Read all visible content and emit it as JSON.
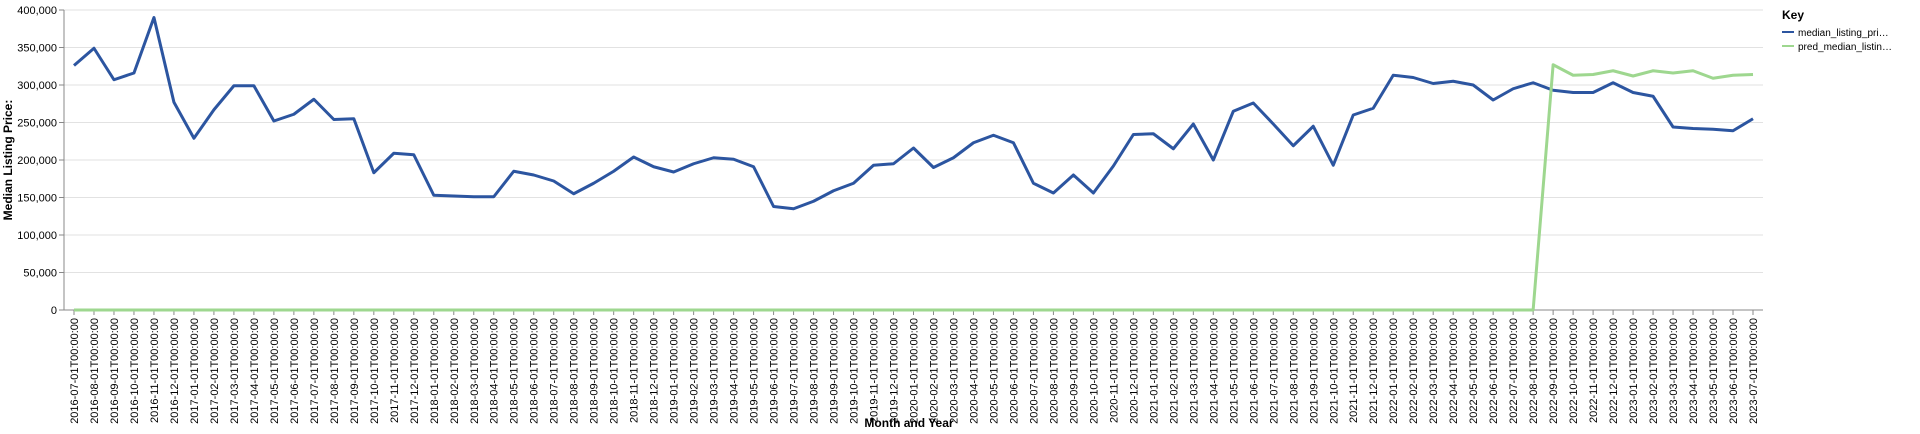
{
  "chart_data": {
    "type": "line",
    "x_label": "Month and Year",
    "y_label": "Median Listing Price:",
    "legend_title": "Key",
    "legend_position": "top-right",
    "grid": true,
    "ylim": [
      0,
      400000
    ],
    "yticks": [
      0,
      {
        "value": 50000,
        "label": "50,000"
      },
      {
        "value": 100000,
        "label": "100,000"
      },
      {
        "value": 150000,
        "label": "150,000"
      },
      {
        "value": 200000,
        "label": "200,000"
      },
      {
        "value": 250000,
        "label": "250,000"
      },
      {
        "value": 300000,
        "label": "300,000"
      },
      {
        "value": 350000,
        "label": "350,000"
      },
      {
        "value": 400000,
        "label": "400,000"
      }
    ],
    "categories": [
      "2016-07-01T00:00:00",
      "2016-08-01T00:00:00",
      "2016-09-01T00:00:00",
      "2016-10-01T00:00:00",
      "2016-11-01T00:00:00",
      "2016-12-01T00:00:00",
      "2017-01-01T00:00:00",
      "2017-02-01T00:00:00",
      "2017-03-01T00:00:00",
      "2017-04-01T00:00:00",
      "2017-05-01T00:00:00",
      "2017-06-01T00:00:00",
      "2017-07-01T00:00:00",
      "2017-08-01T00:00:00",
      "2017-09-01T00:00:00",
      "2017-10-01T00:00:00",
      "2017-11-01T00:00:00",
      "2017-12-01T00:00:00",
      "2018-01-01T00:00:00",
      "2018-02-01T00:00:00",
      "2018-03-01T00:00:00",
      "2018-04-01T00:00:00",
      "2018-05-01T00:00:00",
      "2018-06-01T00:00:00",
      "2018-07-01T00:00:00",
      "2018-08-01T00:00:00",
      "2018-09-01T00:00:00",
      "2018-10-01T00:00:00",
      "2018-11-01T00:00:00",
      "2018-12-01T00:00:00",
      "2019-01-01T00:00:00",
      "2019-02-01T00:00:00",
      "2019-03-01T00:00:00",
      "2019-04-01T00:00:00",
      "2019-05-01T00:00:00",
      "2019-06-01T00:00:00",
      "2019-07-01T00:00:00",
      "2019-08-01T00:00:00",
      "2019-09-01T00:00:00",
      "2019-10-01T00:00:00",
      "2019-11-01T00:00:00",
      "2019-12-01T00:00:00",
      "2020-01-01T00:00:00",
      "2020-02-01T00:00:00",
      "2020-03-01T00:00:00",
      "2020-04-01T00:00:00",
      "2020-05-01T00:00:00",
      "2020-06-01T00:00:00",
      "2020-07-01T00:00:00",
      "2020-08-01T00:00:00",
      "2020-09-01T00:00:00",
      "2020-10-01T00:00:00",
      "2020-11-01T00:00:00",
      "2020-12-01T00:00:00",
      "2021-01-01T00:00:00",
      "2021-02-01T00:00:00",
      "2021-03-01T00:00:00",
      "2021-04-01T00:00:00",
      "2021-05-01T00:00:00",
      "2021-06-01T00:00:00",
      "2021-07-01T00:00:00",
      "2021-08-01T00:00:00",
      "2021-09-01T00:00:00",
      "2021-10-01T00:00:00",
      "2021-11-01T00:00:00",
      "2021-12-01T00:00:00",
      "2022-01-01T00:00:00",
      "2022-02-01T00:00:00",
      "2022-03-01T00:00:00",
      "2022-04-01T00:00:00",
      "2022-05-01T00:00:00",
      "2022-06-01T00:00:00",
      "2022-07-01T00:00:00",
      "2022-08-01T00:00:00",
      "2022-09-01T00:00:00",
      "2022-10-01T00:00:00",
      "2022-11-01T00:00:00",
      "2022-12-01T00:00:00",
      "2023-01-01T00:00:00",
      "2023-02-01T00:00:00",
      "2023-03-01T00:00:00",
      "2023-04-01T00:00:00",
      "2023-05-01T00:00:00",
      "2023-06-01T00:00:00",
      "2023-07-01T00:00:00"
    ],
    "series": [
      {
        "name": "median_listing_pri…",
        "color": "#2c55a0",
        "values": [
          326000,
          349000,
          307000,
          316000,
          390000,
          277000,
          229000,
          267000,
          299000,
          299000,
          252000,
          261000,
          281000,
          254000,
          255000,
          183000,
          209000,
          207000,
          153000,
          152000,
          151000,
          151000,
          185000,
          180000,
          172000,
          155000,
          169000,
          185000,
          204000,
          191000,
          184000,
          195000,
          203000,
          201000,
          191000,
          138000,
          135000,
          145000,
          159000,
          169000,
          193000,
          195000,
          216000,
          190000,
          203000,
          223000,
          233000,
          223000,
          169000,
          156000,
          180000,
          156000,
          192000,
          234000,
          235000,
          215000,
          248000,
          200000,
          265000,
          276000,
          248000,
          219000,
          245000,
          193000,
          260000,
          269000,
          313000,
          310000,
          302000,
          305000,
          300000,
          280000,
          295000,
          303000,
          293000,
          290000,
          290000,
          303000,
          290000,
          285000,
          244000,
          242000,
          241000,
          239000,
          255000
        ]
      },
      {
        "name": "pred_median_listin…",
        "color": "#9ed78f",
        "values": [
          0,
          0,
          0,
          0,
          0,
          0,
          0,
          0,
          0,
          0,
          0,
          0,
          0,
          0,
          0,
          0,
          0,
          0,
          0,
          0,
          0,
          0,
          0,
          0,
          0,
          0,
          0,
          0,
          0,
          0,
          0,
          0,
          0,
          0,
          0,
          0,
          0,
          0,
          0,
          0,
          0,
          0,
          0,
          0,
          0,
          0,
          0,
          0,
          0,
          0,
          0,
          0,
          0,
          0,
          0,
          0,
          0,
          0,
          0,
          0,
          0,
          0,
          0,
          0,
          0,
          0,
          0,
          0,
          0,
          0,
          0,
          0,
          0,
          0,
          327000,
          313000,
          314000,
          319000,
          312000,
          319000,
          316000,
          319000,
          309000,
          313000,
          314000
        ]
      }
    ]
  }
}
